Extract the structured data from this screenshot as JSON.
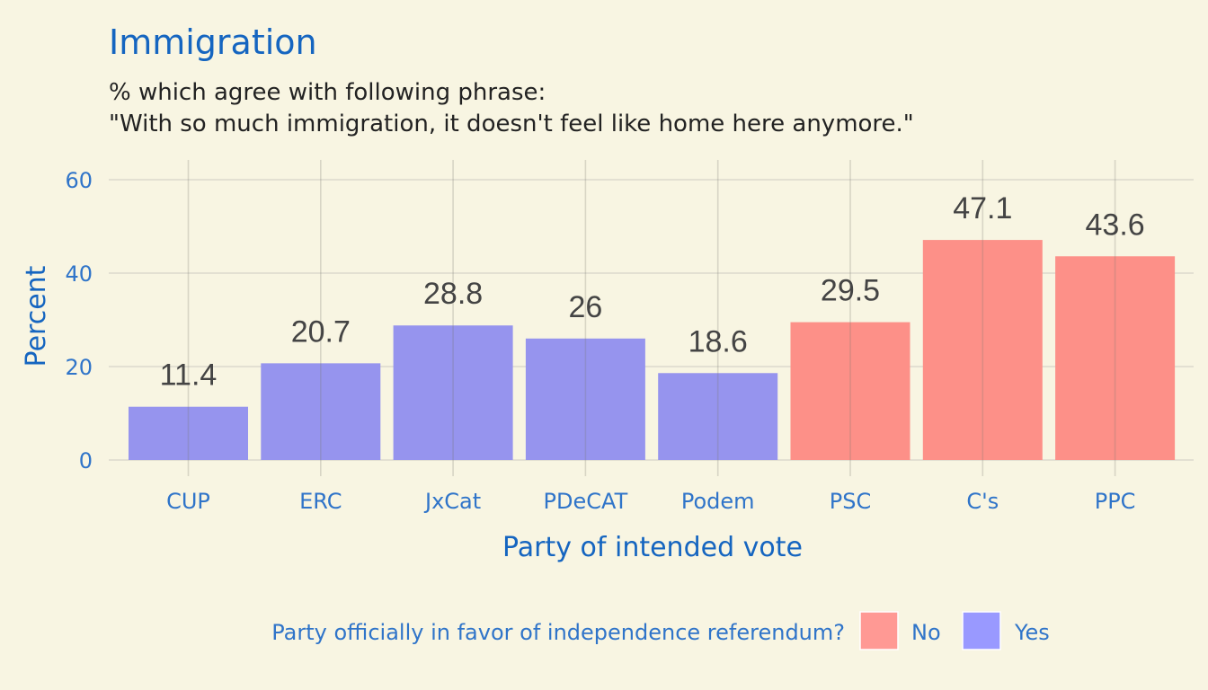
{
  "chart_data": {
    "type": "bar",
    "title": "Immigration",
    "subtitle_lines": [
      "% which agree with following phrase:",
      "\"With so much immigration, it doesn't feel like home here anymore.\""
    ],
    "xlabel": "Party of intended vote",
    "ylabel": "Percent",
    "ylim": [
      0,
      60
    ],
    "yticks": [
      "0",
      "20",
      "40",
      "60"
    ],
    "grid": true,
    "categories": [
      "CUP",
      "ERC",
      "JxCat",
      "PDeCAT",
      "Podem",
      "PSC",
      "C's",
      "PPC"
    ],
    "values": [
      11.4,
      20.7,
      28.8,
      26,
      18.6,
      29.5,
      47.1,
      43.6
    ],
    "data_labels": [
      "11.4",
      "20.7",
      "28.8",
      "26",
      "18.6",
      "29.5",
      "47.1",
      "43.6"
    ],
    "groups": [
      "Yes",
      "Yes",
      "Yes",
      "Yes",
      "Yes",
      "No",
      "No",
      "No"
    ],
    "legend": {
      "title": "Party officially in favor of independence referendum?",
      "position": "bottom",
      "items": [
        {
          "label": "No",
          "color": "#ff9994"
        },
        {
          "label": "Yes",
          "color": "#9999ff"
        }
      ]
    },
    "bar_colors": {
      "No": "#fd9088",
      "Yes": "#9694ee"
    }
  }
}
